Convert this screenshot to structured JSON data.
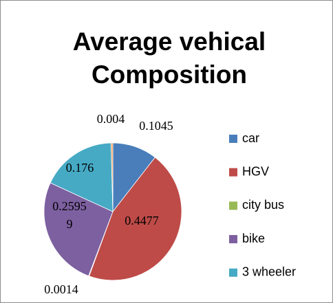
{
  "chart_data": {
    "type": "pie",
    "title": "Average vehical Composition",
    "categories": [
      "car",
      "HGV",
      "city bus",
      "bike",
      "3 wheeler",
      null
    ],
    "values": [
      0.1045,
      0.4477,
      0.0014,
      0.25959,
      0.176,
      0.004
    ],
    "colors": [
      "#4a7ebb",
      "#be4b48",
      "#98b954",
      "#7d60a0",
      "#46aac5",
      "#f79646"
    ],
    "legend": "right"
  }
}
